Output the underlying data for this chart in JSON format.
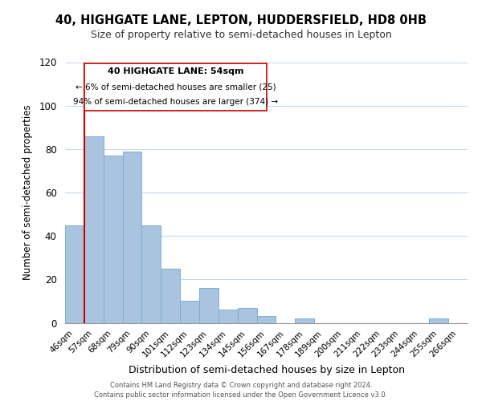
{
  "title": "40, HIGHGATE LANE, LEPTON, HUDDERSFIELD, HD8 0HB",
  "subtitle": "Size of property relative to semi-detached houses in Lepton",
  "xlabel": "Distribution of semi-detached houses by size in Lepton",
  "ylabel": "Number of semi-detached properties",
  "bar_labels": [
    "46sqm",
    "57sqm",
    "68sqm",
    "79sqm",
    "90sqm",
    "101sqm",
    "112sqm",
    "123sqm",
    "134sqm",
    "145sqm",
    "156sqm",
    "167sqm",
    "178sqm",
    "189sqm",
    "200sqm",
    "211sqm",
    "222sqm",
    "233sqm",
    "244sqm",
    "255sqm",
    "266sqm"
  ],
  "bar_values": [
    45,
    86,
    77,
    79,
    45,
    25,
    10,
    16,
    6,
    7,
    3,
    0,
    2,
    0,
    0,
    0,
    0,
    0,
    0,
    2,
    0
  ],
  "bar_color": "#aac4e0",
  "bar_edge_color": "#7aafd4",
  "highlight_color": "#cc0000",
  "annotation_title": "40 HIGHGATE LANE: 54sqm",
  "annotation_line1": "← 6% of semi-detached houses are smaller (25)",
  "annotation_line2": "94% of semi-detached houses are larger (374) →",
  "ylim": [
    0,
    120
  ],
  "yticks": [
    0,
    20,
    40,
    60,
    80,
    100,
    120
  ],
  "footer1": "Contains HM Land Registry data © Crown copyright and database right 2024.",
  "footer2": "Contains public sector information licensed under the Open Government Licence v3.0.",
  "background_color": "#ffffff",
  "grid_color": "#c8d8e8"
}
